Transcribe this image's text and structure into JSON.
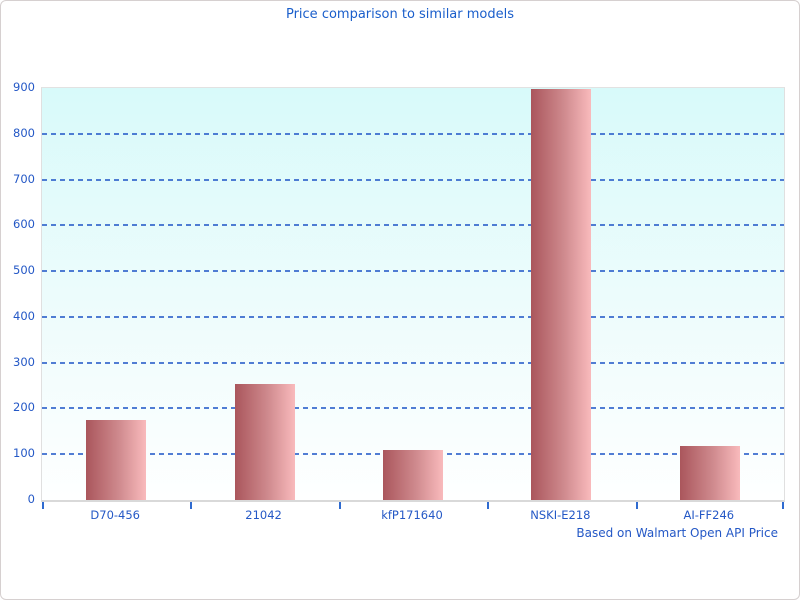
{
  "chart_data": {
    "type": "bar",
    "title": "Price comparison to similar models",
    "categories": [
      "D70-456",
      "21042",
      "kfP171640",
      "NSKI-E218",
      "AI-FF246"
    ],
    "values": [
      175,
      254,
      110,
      898,
      118
    ],
    "xlabel": "",
    "ylabel": "",
    "ylim": [
      0,
      900
    ],
    "yticks": [
      0,
      100,
      200,
      300,
      400,
      500,
      600,
      700,
      800,
      900
    ],
    "grid": "horizontal-dashed",
    "legend": "none",
    "note": "Based on Walmart Open API Price"
  },
  "colors": {
    "title": "#1a5ecb",
    "axis_labels": "#2458c6",
    "gridline": "#3366cc",
    "tick": "#2f6bd0",
    "bar_gradient_left": "#aa565c",
    "bar_gradient_right": "#f9babc",
    "plot_bg_top": "#d8fafa",
    "plot_bg_bottom": "#feffff",
    "axis_line": "#d9d9d9",
    "figure_border": "#d6d0d0",
    "background": "#ffffff"
  }
}
